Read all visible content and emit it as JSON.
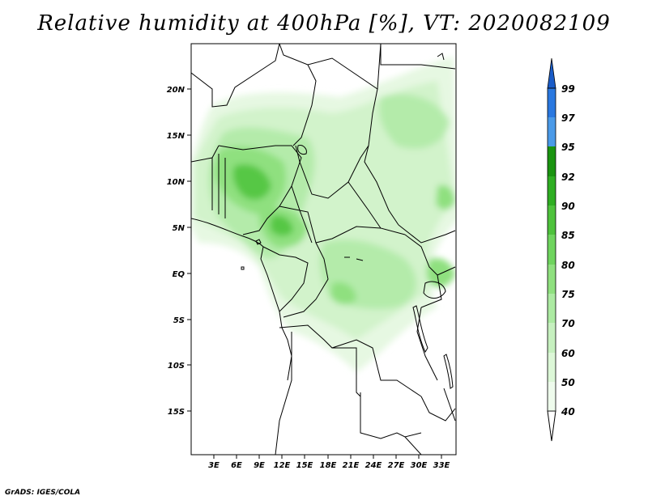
{
  "title": "Relative humidity at 400hPa [%], VT: 2020082109",
  "lat_labels": [
    "20N",
    "15N",
    "10N",
    "5N",
    "EQ",
    "5S",
    "10S",
    "15S"
  ],
  "lon_labels": [
    "3E",
    "6E",
    "9E",
    "12E",
    "15E",
    "18E",
    "21E",
    "24E",
    "27E",
    "30E",
    "33E"
  ],
  "colorbar": {
    "levels": [
      "40",
      "50",
      "60",
      "70",
      "75",
      "80",
      "85",
      "90",
      "92",
      "95",
      "97",
      "99"
    ],
    "colors": [
      "#eefbec",
      "#dcf7d7",
      "#c6f0bf",
      "#aceaa2",
      "#8fe07f",
      "#6fd45e",
      "#4ec23c",
      "#2fae22",
      "#1a9410",
      "#4a9ae8",
      "#2a78e0",
      "#1a5cc8"
    ]
  },
  "credit": "GrADS: IGES/COLA"
}
